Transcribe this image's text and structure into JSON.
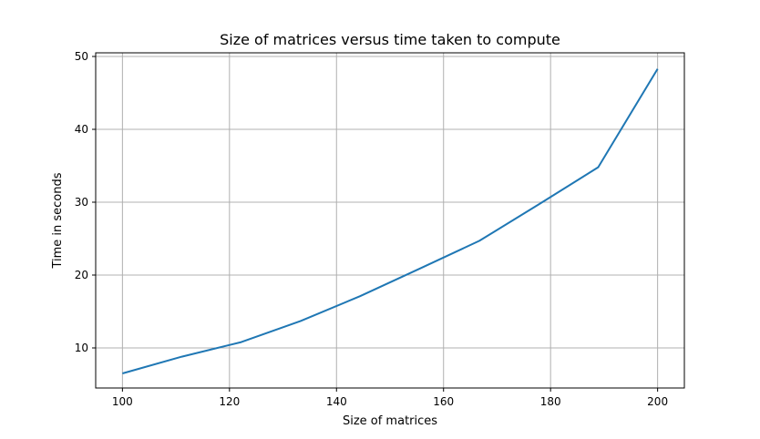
{
  "chart_data": {
    "type": "line",
    "title": "Size of matrices versus time taken to compute",
    "xlabel": "Size of matrices",
    "ylabel": "Time in seconds",
    "xlim": [
      95,
      205
    ],
    "ylim": [
      4.5,
      50.5
    ],
    "xticks": [
      100,
      120,
      140,
      160,
      180,
      200
    ],
    "yticks": [
      10,
      20,
      30,
      40,
      50
    ],
    "grid": true,
    "series": [
      {
        "color": "#1f77b4",
        "x": [
          100,
          111.1,
          122.2,
          133.3,
          144.4,
          155.6,
          166.7,
          177.8,
          188.9,
          200
        ],
        "y": [
          6.5,
          8.8,
          10.8,
          13.7,
          17.1,
          20.9,
          24.7,
          29.7,
          34.8,
          48.3
        ]
      }
    ]
  }
}
